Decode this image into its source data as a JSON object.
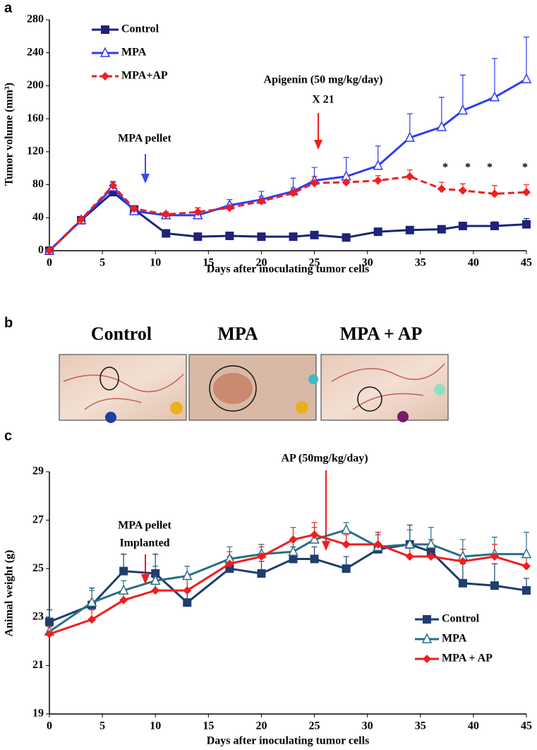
{
  "panel_labels": [
    "a",
    "b",
    "c"
  ],
  "photo_panel": {
    "labels": [
      "Control",
      "MPA",
      "MPA + AP"
    ]
  },
  "chart_data": [
    {
      "type": "line",
      "xlabel": "Days after inoculating tumor cells",
      "ylabel": "Tumor volume (mm³)",
      "x": [
        0,
        3,
        6,
        8,
        11,
        14,
        17,
        20,
        23,
        25,
        28,
        31,
        34,
        37,
        39,
        42,
        45
      ],
      "series": [
        {
          "name": "Control",
          "color": "#1c237a",
          "marker": "square",
          "dashed": false,
          "values": [
            0,
            37,
            71,
            50,
            21,
            17,
            18,
            17,
            17,
            19,
            16,
            23,
            25,
            26,
            30,
            30,
            32
          ],
          "errors": [
            0,
            3,
            4,
            3,
            3,
            2,
            2,
            2,
            2,
            3,
            2,
            3,
            3,
            3,
            4,
            5,
            7
          ]
        },
        {
          "name": "MPA",
          "color": "#2f3cf5",
          "marker": "triangle",
          "dashed": false,
          "values": [
            0,
            37,
            77,
            48,
            43,
            43,
            55,
            62,
            72,
            85,
            90,
            103,
            137,
            150,
            170,
            186,
            208
          ],
          "errors": [
            0,
            3,
            6,
            4,
            4,
            9,
            7,
            10,
            16,
            16,
            23,
            24,
            29,
            36,
            43,
            47,
            51
          ]
        },
        {
          "name": "MPA+AP",
          "color": "#f01e1e",
          "marker": "diamond",
          "dashed": true,
          "values": [
            0,
            38,
            79,
            51,
            44,
            47,
            52,
            60,
            70,
            82,
            83,
            85,
            90,
            75,
            73,
            69,
            71
          ],
          "errors": [
            0,
            3,
            5,
            3,
            3,
            5,
            5,
            6,
            6,
            8,
            6,
            6,
            8,
            8,
            8,
            10,
            9
          ]
        }
      ],
      "annotations": [
        "MPA pellet",
        "Apigenin (50 mg/kg/day)",
        "X 21",
        "*",
        "*",
        "*",
        "*"
      ],
      "xlim": [
        0,
        45
      ],
      "xticks": [
        0,
        5,
        10,
        15,
        20,
        25,
        30,
        35,
        40,
        45
      ],
      "ylim": [
        0,
        280
      ],
      "yticks": [
        0,
        40,
        80,
        120,
        160,
        200,
        240,
        280
      ],
      "legend": "upper left",
      "grid": false
    },
    {
      "type": "line",
      "xlabel": "Days after  inoculating tumor cells",
      "ylabel": "Animal weight (g)",
      "x": [
        0,
        4,
        7,
        10,
        13,
        17,
        20,
        23,
        25,
        28,
        31,
        34,
        36,
        39,
        42,
        45
      ],
      "series": [
        {
          "name": "Control",
          "color": "#1f3d6e",
          "marker": "square",
          "dashed": false,
          "values": [
            22.8,
            23.5,
            24.9,
            24.8,
            23.6,
            25.0,
            24.8,
            25.4,
            25.4,
            25.0,
            25.8,
            26.0,
            25.7,
            24.4,
            24.3,
            24.1
          ],
          "errors": [
            0.5,
            0.7,
            0.7,
            0.8,
            0.5,
            0.5,
            0.5,
            0.5,
            0.5,
            0.5,
            0.6,
            0.8,
            0.5,
            0.8,
            0.9,
            0.5
          ]
        },
        {
          "name": "MPA",
          "color": "#2a6f86",
          "marker": "triangle",
          "dashed": false,
          "values": [
            22.4,
            23.6,
            24.1,
            24.5,
            24.7,
            25.4,
            25.6,
            25.7,
            26.2,
            26.6,
            25.9,
            26.0,
            26.0,
            25.5,
            25.6,
            25.6
          ],
          "errors": [
            0.3,
            0.5,
            0.4,
            0.6,
            0.4,
            0.5,
            0.4,
            0.5,
            0.5,
            0.3,
            0.6,
            0.6,
            0.7,
            0.7,
            0.7,
            0.9
          ]
        },
        {
          "name": "MPA + AP",
          "color": "#f01e1e",
          "marker": "diamond",
          "dashed": false,
          "values": [
            22.3,
            22.9,
            23.7,
            24.1,
            24.1,
            25.2,
            25.5,
            26.2,
            26.4,
            26.0,
            26.0,
            25.5,
            25.5,
            25.3,
            25.5,
            25.1
          ],
          "errors": [
            0.3,
            0.4,
            0.4,
            0.5,
            0.5,
            0.5,
            0.4,
            0.5,
            0.5,
            0.4,
            0.5,
            0.4,
            0.5,
            0.5,
            0.5,
            0.5
          ]
        }
      ],
      "annotations": [
        "AP (50mg/kg/day)",
        "MPA pellet",
        "Implanted"
      ],
      "xlim": [
        0,
        45
      ],
      "xticks": [
        0,
        5,
        10,
        15,
        20,
        25,
        30,
        35,
        40,
        45
      ],
      "ylim": [
        19,
        29
      ],
      "yticks": [
        19,
        21,
        23,
        25,
        27,
        29
      ],
      "legend": "lower right",
      "grid": false
    }
  ]
}
